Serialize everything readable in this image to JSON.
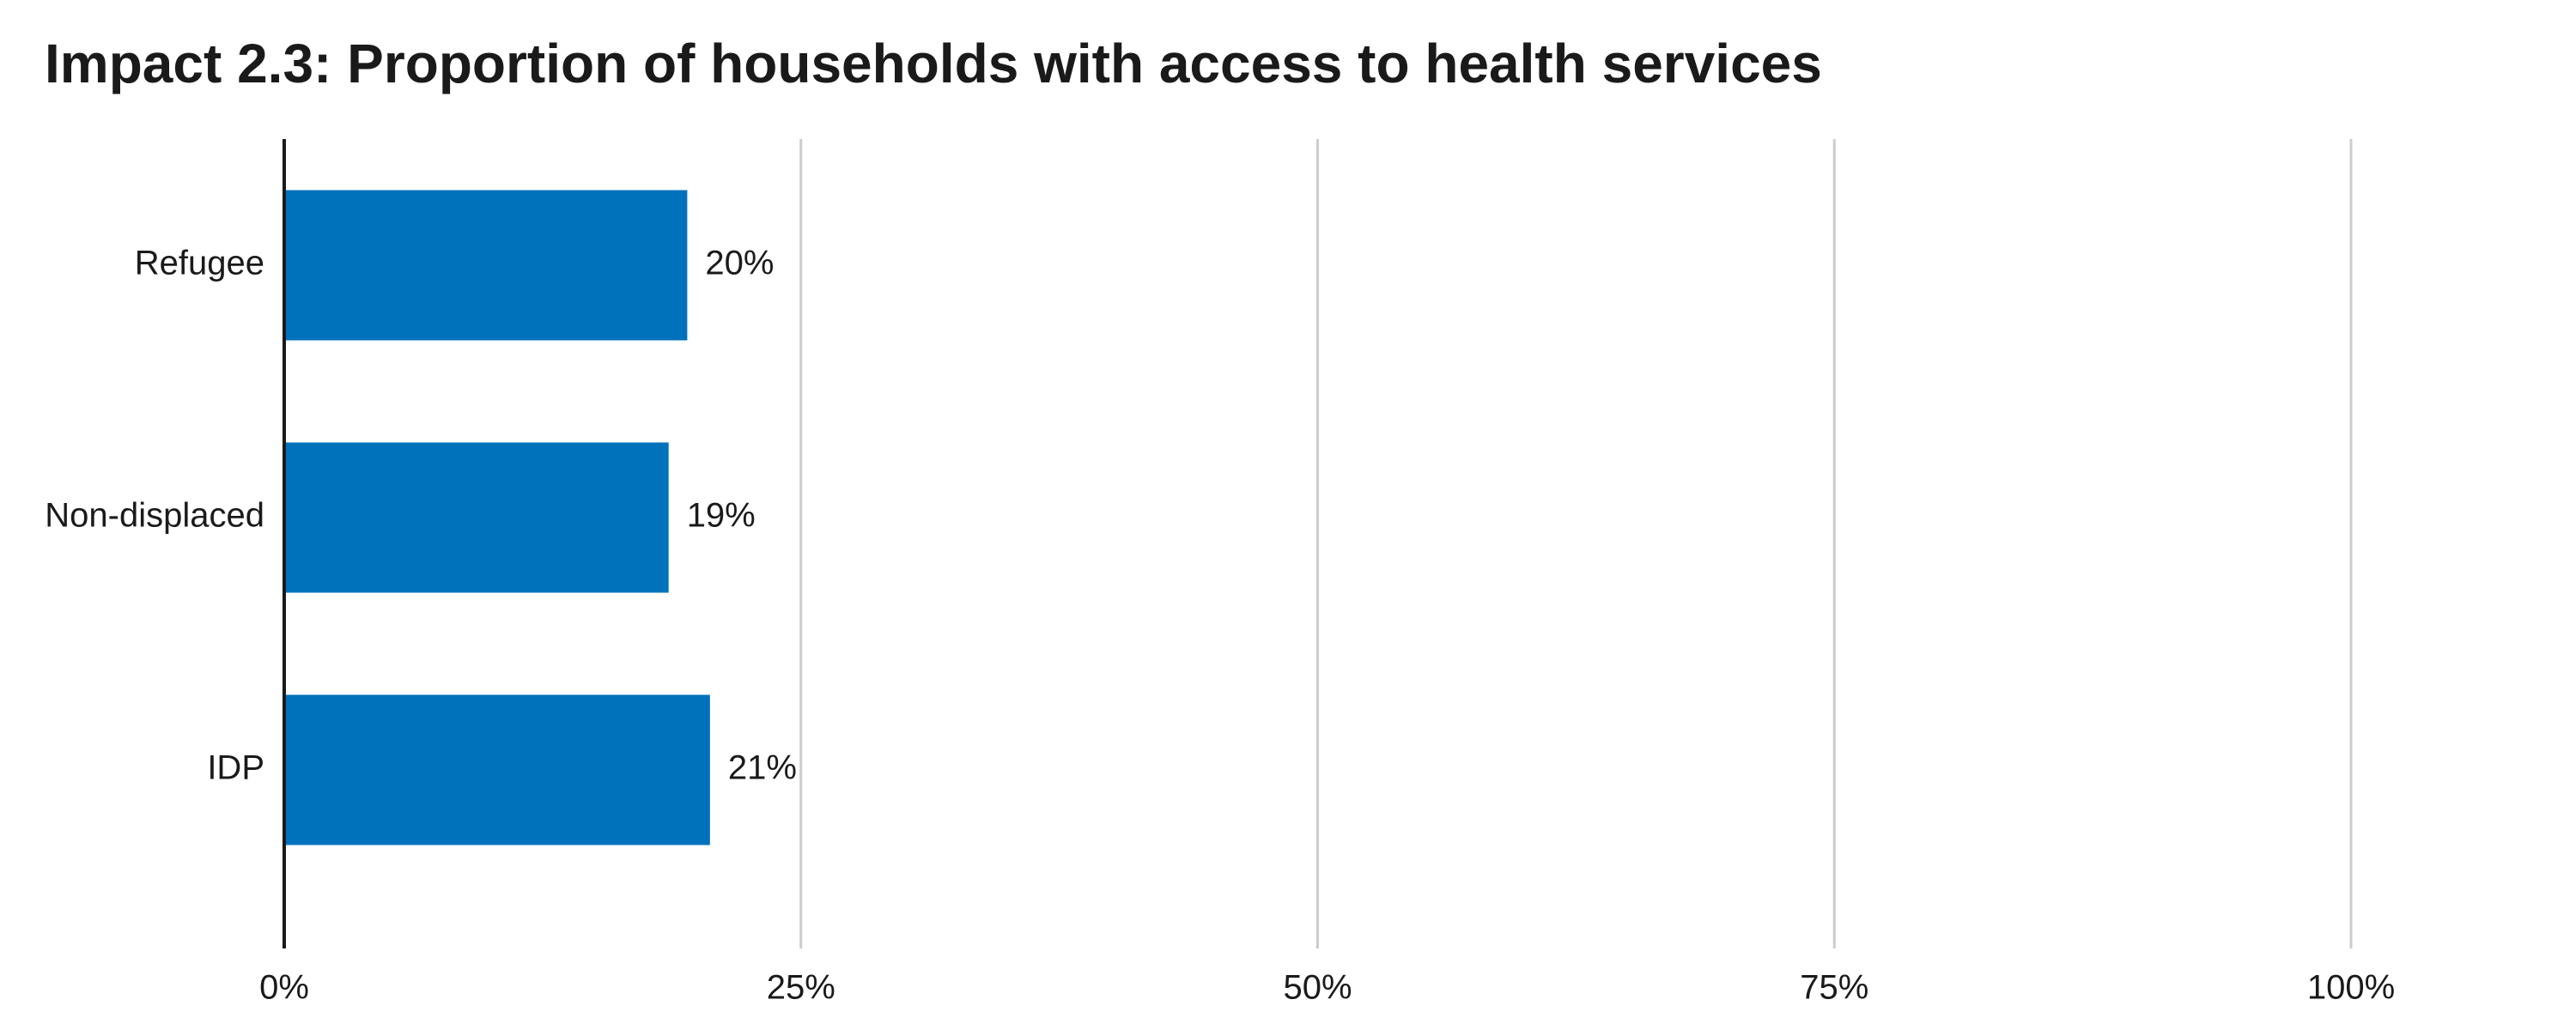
{
  "chart_data": {
    "type": "bar",
    "orientation": "horizontal",
    "title": "Impact 2.3: Proportion of households with access to health services",
    "categories": [
      "Refugee",
      "Non-displaced",
      "IDP"
    ],
    "values": [
      0.195,
      0.186,
      0.206
    ],
    "data_labels": [
      "20%",
      "19%",
      "21%"
    ],
    "xlim": [
      0,
      1
    ],
    "x_ticks": [
      0,
      0.25,
      0.5,
      0.75,
      1
    ],
    "x_tick_labels": [
      "0%",
      "25%",
      "50%",
      "75%",
      "100%"
    ],
    "grid": "vertical",
    "legend": "none",
    "colors": {
      "bar": "#0072BC",
      "grid": "#cccccc",
      "axis": "#1a1a1a"
    }
  }
}
